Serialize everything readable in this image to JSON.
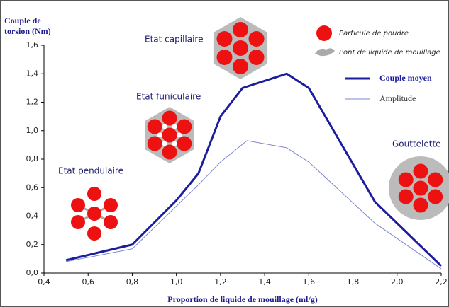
{
  "chart_data": {
    "type": "line",
    "y_label": "Couple de torsion (Nm)",
    "x_label": "Proportion de liquide de mouillage (ml/g)",
    "xlim": [
      0.4,
      2.2
    ],
    "xticks": [
      {
        "value": 0.4,
        "label": "0,4"
      },
      {
        "value": 0.6,
        "label": "0,6"
      },
      {
        "value": 0.8,
        "label": "0,8"
      },
      {
        "value": 1.0,
        "label": "1,0"
      },
      {
        "value": 1.2,
        "label": "1,2"
      },
      {
        "value": 1.4,
        "label": "1,4"
      },
      {
        "value": 1.6,
        "label": "1,6"
      },
      {
        "value": 1.8,
        "label": "1,8"
      },
      {
        "value": 2.0,
        "label": "2,0"
      },
      {
        "value": 2.2,
        "label": "2,2"
      }
    ],
    "ylim": [
      0,
      1.6
    ],
    "yticks": [
      {
        "value": 0,
        "label": "0,0"
      },
      {
        "value": 0.2,
        "label": "0,2"
      },
      {
        "value": 0.4,
        "label": "0,4"
      },
      {
        "value": 0.6,
        "label": "0,6"
      },
      {
        "value": 0.8,
        "label": "0,8"
      },
      {
        "value": 1.0,
        "label": "1,0"
      },
      {
        "value": 1.2,
        "label": "1,2"
      },
      {
        "value": 1.4,
        "label": "1,4"
      },
      {
        "value": 1.6,
        "label": "1,6"
      }
    ],
    "grid": false,
    "series": [
      {
        "name": "Couple moyen",
        "color": "#1c1c9e",
        "width": 3,
        "x": [
          0.5,
          0.8,
          1.0,
          1.1,
          1.2,
          1.3,
          1.5,
          1.6,
          1.9,
          2.2
        ],
        "values": [
          0.09,
          0.2,
          0.51,
          0.7,
          1.1,
          1.3,
          1.4,
          1.3,
          0.5,
          0.05
        ]
      },
      {
        "name": "Amplitude",
        "color": "#7e86cf",
        "width": 1,
        "x": [
          0.5,
          0.8,
          1.1,
          1.2,
          1.32,
          1.5,
          1.6,
          1.9,
          2.2
        ],
        "values": [
          0.08,
          0.17,
          0.62,
          0.78,
          0.93,
          0.88,
          0.78,
          0.35,
          0.03
        ]
      }
    ],
    "annotations": [
      "Etat pendulaire",
      "Etat funiculaire",
      "Etat capillaire",
      "Gouttelette"
    ],
    "illustration_legend": [
      "Particule de poudre",
      "Pont de liquide de mouillage"
    ]
  }
}
